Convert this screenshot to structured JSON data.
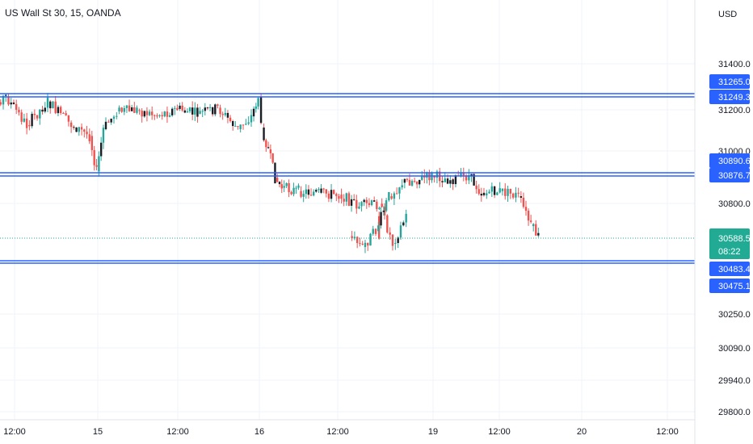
{
  "header": {
    "title": "US Wall St 30, 15, OANDA"
  },
  "price_scale": {
    "currency": "USD"
  },
  "countdown": "08:22",
  "colors": {
    "up": "#26a69a",
    "down": "#ef5350",
    "candle_body_dark": "#1a1d24",
    "level_line": "#2962ff",
    "level_tag": "#2962ff",
    "last_price": "#22ab94",
    "grid": "#f0f3fa",
    "text": "#131722"
  },
  "chart_data": {
    "type": "candlestick",
    "symbol": "US Wall St 30",
    "interval": "15",
    "source": "OANDA",
    "x_ticks": [
      "12:00",
      "15",
      "12:00",
      "16",
      "12:00",
      "19",
      "12:00",
      "20",
      "12:00"
    ],
    "y_ticks": [
      "31400.0",
      "31200.0",
      "31000.0",
      "30800.0",
      "30250.0",
      "30090.0",
      "29940.0",
      "29800.0"
    ],
    "y_scale_note": "non-linear price axis",
    "horizontal_levels": [
      {
        "pair": [
          "31265.0",
          "31249.3"
        ],
        "color": "#2962ff"
      },
      {
        "pair": [
          "30890.6",
          "30876.7"
        ],
        "color": "#2962ff"
      },
      {
        "pair": [
          "30483.4",
          "30475.1"
        ],
        "color": "#2962ff"
      }
    ],
    "last_price": "30588.5",
    "price_path": [
      {
        "t": "14 06:00",
        "p": 31190
      },
      {
        "t": "14 08:00",
        "p": 31215
      },
      {
        "t": "14 11:00",
        "p": 31255
      },
      {
        "t": "14 14:00",
        "p": 31140
      },
      {
        "t": "14 17:00",
        "p": 31235
      },
      {
        "t": "14 20:00",
        "p": 31150
      },
      {
        "t": "14 23:00",
        "p": 31080
      },
      {
        "t": "15 00:00",
        "p": 30900
      },
      {
        "t": "15 01:00",
        "p": 31120
      },
      {
        "t": "15 03:00",
        "p": 31195
      },
      {
        "t": "15 06:00",
        "p": 31200
      },
      {
        "t": "15 09:00",
        "p": 31180
      },
      {
        "t": "15 12:00",
        "p": 31205
      },
      {
        "t": "15 15:00",
        "p": 31185
      },
      {
        "t": "15 18:00",
        "p": 31210
      },
      {
        "t": "15 21:00",
        "p": 31120
      },
      {
        "t": "15 23:00",
        "p": 31175
      },
      {
        "t": "16 00:00",
        "p": 31255
      },
      {
        "t": "16 00:30",
        "p": 31130
      },
      {
        "t": "16 01:30",
        "p": 31000
      },
      {
        "t": "16 02:30",
        "p": 30870
      },
      {
        "t": "16 03:30",
        "p": 30810
      },
      {
        "t": "16 06:00",
        "p": 30790
      },
      {
        "t": "16 09:00",
        "p": 30780
      },
      {
        "t": "16 12:00",
        "p": 30770
      },
      {
        "t": "16 15:00",
        "p": 30720
      },
      {
        "t": "16 18:00",
        "p": 30730
      },
      {
        "t": "16 20:00",
        "p": 30560
      },
      {
        "t": "16 22:00",
        "p": 30680
      },
      {
        "t": "17 00:00",
        "p": 30600
      },
      {
        "t": "17 02:00",
        "p": 30540
      },
      {
        "t": "17 04:00",
        "p": 30620
      },
      {
        "t": "17 06:00",
        "p": 30760
      },
      {
        "t": "17 08:00",
        "p": 30840
      },
      {
        "t": "19 00:00",
        "p": 30880
      },
      {
        "t": "19 03:00",
        "p": 30860
      },
      {
        "t": "19 06:00",
        "p": 30880
      },
      {
        "t": "19 08:00",
        "p": 30780
      },
      {
        "t": "19 11:00",
        "p": 30790
      },
      {
        "t": "19 14:00",
        "p": 30760
      },
      {
        "t": "19 16:00",
        "p": 30640
      },
      {
        "t": "19 18:00",
        "p": 30560
      },
      {
        "t": "19 20:00",
        "p": 30480
      },
      {
        "t": "19 22:00",
        "p": 30540
      },
      {
        "t": "20 00:00",
        "p": 30588.5
      }
    ]
  }
}
